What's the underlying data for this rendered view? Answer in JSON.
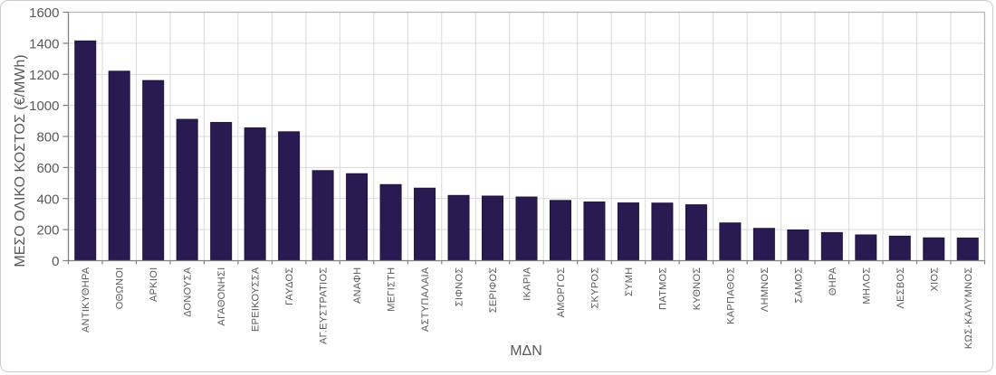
{
  "chart_data": {
    "type": "bar",
    "title": "",
    "xlabel": "ΜΔΝ",
    "ylabel": "ΜΕΣΟ ΟΛΙΚΟ ΚΟΣΤΟΣ (€/MWh)",
    "categories": [
      "ΑΝΤΙΚΥΘΗΡΑ",
      "ΟΘΩΝΟΙ",
      "ΑΡΚΙΟΙ",
      "ΔΟΝΟΥΣΑ",
      "ΑΓΑΘΟΝΗΣΙ",
      "ΕΡΕΙΚΟΥΣΣΑ",
      "ΓΑΥΔΟΣ",
      "ΑΓ.ΕΥΣΤΡΑΤΙΟΣ",
      "ΑΝΑΦΗ",
      "ΜΕΓΙΣΤΗ",
      "ΑΣΤΥΠΑΛΑΙΑ",
      "ΣΙΦΝΟΣ",
      "ΣΕΡΙΦΟΣ",
      "ΙΚΑΡΙΑ",
      "ΑΜΟΡΓΟΣ",
      "ΣΚΥΡΟΣ",
      "ΣΥΜΗ",
      "ΠΑΤΜΟΣ",
      "ΚΥΘΝΟΣ",
      "ΚΑΡΠΑΘΟΣ",
      "ΛΗΜΝΟΣ",
      "ΣΑΜΟΣ",
      "ΘΗΡΑ",
      "ΜΗΛΟΣ",
      "ΛΕΣΒΟΣ",
      "ΧΙΟΣ",
      "ΚΩΣ-ΚΑΛΥΜΝΟΣ"
    ],
    "values": [
      1415,
      1220,
      1160,
      910,
      890,
      855,
      830,
      580,
      560,
      490,
      467,
      420,
      416,
      410,
      388,
      378,
      372,
      371,
      360,
      243,
      208,
      198,
      181,
      166,
      158,
      147,
      146
    ],
    "ylim": [
      0,
      1600
    ],
    "yticks": [
      0,
      200,
      400,
      600,
      800,
      1000,
      1200,
      1400,
      1600
    ],
    "grid": true,
    "legend": "none",
    "colors": {
      "bar_fill": "#2a1a52",
      "bar_border": "#21143f",
      "grid_line": "#d9d9d9",
      "axis_line": "#808080",
      "plot_border": "#b3b3b3",
      "text": "#595959"
    }
  }
}
